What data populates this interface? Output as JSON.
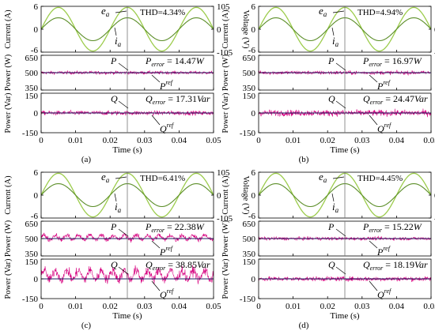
{
  "chart_data": [
    {
      "type": "line",
      "label": "(a)",
      "xlabel": "Time (s)",
      "x_ticks": [
        "0",
        "0.01",
        "0.02",
        "0.03",
        "0.04",
        "0.05"
      ],
      "xlim": [
        0,
        0.05
      ],
      "marker_time": 0.025,
      "subplots": [
        {
          "id": "current-voltage",
          "ylabel": "Current (A)",
          "ylabel_right": "Voltage (V)",
          "ylim": [
            -6,
            6
          ],
          "y_ticks": [
            "6",
            "0",
            "-6"
          ],
          "ylim_right": [
            -105,
            105
          ],
          "y_ticks_right": [
            "105",
            "0",
            "-105"
          ],
          "annotation": "THD=4.34%",
          "series": [
            {
              "name": "e",
              "sub": "a",
              "kind": "voltage",
              "amplitude": 100,
              "frequency_hz": 50,
              "color": "#9ccc4c"
            },
            {
              "name": "i",
              "sub": "a",
              "kind": "current",
              "amplitude_before": 3.0,
              "amplitude_after": 3.0,
              "frequency_hz": 50,
              "color": "#5d8f2a"
            }
          ]
        },
        {
          "id": "active-power",
          "ylabel": "Power (W)",
          "ylim": [
            350,
            650
          ],
          "y_ticks": [
            "650",
            "500",
            "350"
          ],
          "annotation": "P",
          "annotation_sub": "error",
          "annotation_value": " = 14.47",
          "annotation_unit": "W",
          "series": [
            {
              "name": "P",
              "kind": "measured",
              "mean": 500,
              "ripple": 14.47,
              "periodic": false,
              "color": "#d6007f"
            },
            {
              "name": "P",
              "sup": "ref",
              "kind": "reference",
              "value": 500,
              "color": "#1f1f5f"
            }
          ]
        },
        {
          "id": "reactive-power",
          "ylabel": "Power (Var)",
          "ylim": [
            -150,
            150
          ],
          "y_ticks": [
            "150",
            "0",
            "-150"
          ],
          "annotation": "Q",
          "annotation_sub": "error",
          "annotation_value": " = 17.31",
          "annotation_unit": "Var",
          "series": [
            {
              "name": "Q",
              "kind": "measured",
              "mean": 0,
              "ripple": 17.31,
              "periodic": false,
              "color": "#d6007f"
            },
            {
              "name": "Q",
              "sup": "ref",
              "kind": "reference",
              "value": 0,
              "color": "#1f1f5f"
            }
          ]
        }
      ]
    },
    {
      "type": "line",
      "label": "(b)",
      "xlabel": "Time (s)",
      "x_ticks": [
        "0",
        "0.01",
        "0.02",
        "0.03",
        "0.04",
        "0.05"
      ],
      "xlim": [
        0,
        0.05
      ],
      "marker_time": 0.025,
      "subplots": [
        {
          "id": "current-voltage",
          "ylabel": "Current (A)",
          "ylabel_right": "Voltage (V)",
          "ylim": [
            -6,
            6
          ],
          "y_ticks": [
            "6",
            "0",
            "-6"
          ],
          "ylim_right": [
            -105,
            105
          ],
          "y_ticks_right": [
            "105",
            "0",
            "-105"
          ],
          "annotation": "THD=4.94%",
          "series": [
            {
              "name": "e",
              "sub": "a",
              "kind": "voltage",
              "amplitude": 100,
              "frequency_hz": 50,
              "color": "#9ccc4c"
            },
            {
              "name": "i",
              "sub": "a",
              "kind": "current",
              "amplitude_before": 3.0,
              "amplitude_after": 3.0,
              "frequency_hz": 50,
              "color": "#5d8f2a"
            }
          ]
        },
        {
          "id": "active-power",
          "ylabel": "Power (W)",
          "ylim": [
            350,
            650
          ],
          "y_ticks": [
            "650",
            "500",
            "350"
          ],
          "annotation": "P",
          "annotation_sub": "error",
          "annotation_value": " = 16.97",
          "annotation_unit": "W",
          "series": [
            {
              "name": "P",
              "kind": "measured",
              "mean": 500,
              "ripple": 16.97,
              "periodic": false,
              "color": "#d6007f"
            },
            {
              "name": "P",
              "sup": "ref",
              "kind": "reference",
              "value": 500,
              "color": "#1f1f5f"
            }
          ]
        },
        {
          "id": "reactive-power",
          "ylabel": "Power (Var)",
          "ylim": [
            -150,
            150
          ],
          "y_ticks": [
            "150",
            "0",
            "-150"
          ],
          "annotation": "Q",
          "annotation_sub": "error",
          "annotation_value": " = 24.47",
          "annotation_unit": "Var",
          "series": [
            {
              "name": "Q",
              "kind": "measured",
              "mean": 0,
              "ripple": 24.47,
              "periodic": false,
              "color": "#d6007f"
            },
            {
              "name": "Q",
              "sup": "ref",
              "kind": "reference",
              "value": 0,
              "color": "#1f1f5f"
            }
          ]
        }
      ]
    },
    {
      "type": "line",
      "label": "(c)",
      "xlabel": "Time (s)",
      "x_ticks": [
        "0",
        "0.01",
        "0.02",
        "0.03",
        "0.04",
        "0.05"
      ],
      "xlim": [
        0,
        0.05
      ],
      "marker_time": 0.025,
      "subplots": [
        {
          "id": "current-voltage",
          "ylabel": "Current (A)",
          "ylabel_right": "Voltage (V)",
          "ylim": [
            -6,
            6
          ],
          "y_ticks": [
            "6",
            "0",
            "-6"
          ],
          "ylim_right": [
            -105,
            105
          ],
          "y_ticks_right": [
            "105",
            "0",
            "-105"
          ],
          "annotation": "THD=6.41%",
          "series": [
            {
              "name": "e",
              "sub": "a",
              "kind": "voltage",
              "amplitude": 100,
              "frequency_hz": 50,
              "color": "#9ccc4c"
            },
            {
              "name": "i",
              "sub": "a",
              "kind": "current",
              "amplitude_before": 3.0,
              "amplitude_after": 3.0,
              "frequency_hz": 50,
              "color": "#5d8f2a"
            }
          ]
        },
        {
          "id": "active-power",
          "ylabel": "Power (W)",
          "ylim": [
            350,
            650
          ],
          "y_ticks": [
            "650",
            "500",
            "350"
          ],
          "annotation": "P",
          "annotation_sub": "error",
          "annotation_value": " = 22.38",
          "annotation_unit": "W",
          "series": [
            {
              "name": "P",
              "kind": "measured",
              "mean": 510,
              "ripple": 22.38,
              "periodic": true,
              "color": "#d6007f"
            },
            {
              "name": "P",
              "sup": "ref",
              "kind": "reference",
              "value": 500,
              "color": "#1f1f5f"
            }
          ]
        },
        {
          "id": "reactive-power",
          "ylabel": "Power (Var)",
          "ylim": [
            -150,
            150
          ],
          "y_ticks": [
            "150",
            "0",
            "-150"
          ],
          "annotation": "Q",
          "annotation_sub": "error",
          "annotation_value": " = 38.85",
          "annotation_unit": "Var",
          "series": [
            {
              "name": "Q",
              "kind": "measured",
              "mean": 30,
              "ripple": 38.85,
              "periodic": true,
              "color": "#d6007f"
            },
            {
              "name": "Q",
              "sup": "ref",
              "kind": "reference",
              "value": 0,
              "color": "#1f1f5f"
            }
          ]
        }
      ]
    },
    {
      "type": "line",
      "label": "(d)",
      "xlabel": "Time (s)",
      "x_ticks": [
        "0",
        "0.01",
        "0.02",
        "0.03",
        "0.04",
        "0.05"
      ],
      "xlim": [
        0,
        0.05
      ],
      "marker_time": 0.025,
      "subplots": [
        {
          "id": "current-voltage",
          "ylabel": "Current (A)",
          "ylabel_right": "Voltage (V)",
          "ylim": [
            -6,
            6
          ],
          "y_ticks": [
            "6",
            "0",
            "-6"
          ],
          "ylim_right": [
            -105,
            105
          ],
          "y_ticks_right": [
            "105",
            "0",
            "-105"
          ],
          "annotation": "THD=4.45%",
          "series": [
            {
              "name": "e",
              "sub": "a",
              "kind": "voltage",
              "amplitude": 100,
              "frequency_hz": 50,
              "color": "#9ccc4c"
            },
            {
              "name": "i",
              "sub": "a",
              "kind": "current",
              "amplitude_before": 3.0,
              "amplitude_after": 3.0,
              "frequency_hz": 50,
              "color": "#5d8f2a"
            }
          ]
        },
        {
          "id": "active-power",
          "ylabel": "Power (W)",
          "ylim": [
            350,
            650
          ],
          "y_ticks": [
            "650",
            "500",
            "350"
          ],
          "annotation": "P",
          "annotation_sub": "error",
          "annotation_value": " = 15.22",
          "annotation_unit": "W",
          "series": [
            {
              "name": "P",
              "kind": "measured",
              "mean": 500,
              "ripple": 15.22,
              "periodic": false,
              "color": "#d6007f"
            },
            {
              "name": "P",
              "sup": "ref",
              "kind": "reference",
              "value": 500,
              "color": "#1f1f5f"
            }
          ]
        },
        {
          "id": "reactive-power",
          "ylabel": "Power (Var)",
          "ylim": [
            -150,
            150
          ],
          "y_ticks": [
            "150",
            "0",
            "-150"
          ],
          "annotation": "Q",
          "annotation_sub": "error",
          "annotation_value": " = 18.19",
          "annotation_unit": "Var",
          "series": [
            {
              "name": "Q",
              "kind": "measured",
              "mean": 0,
              "ripple": 18.19,
              "periodic": false,
              "color": "#d6007f"
            },
            {
              "name": "Q",
              "sup": "ref",
              "kind": "reference",
              "value": 0,
              "color": "#1f1f5f"
            }
          ]
        }
      ]
    }
  ]
}
